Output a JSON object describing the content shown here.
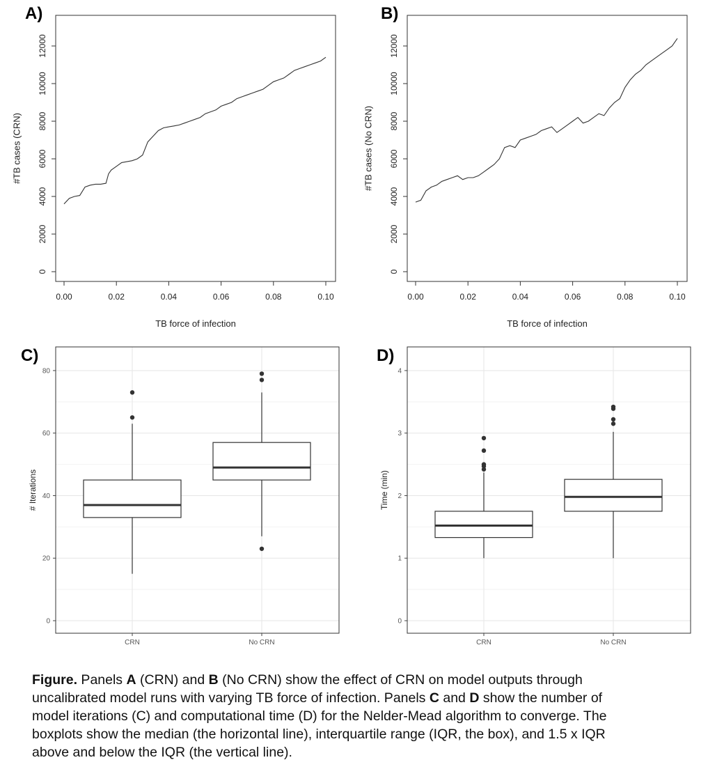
{
  "chart_data": [
    {
      "id": "A",
      "type": "line",
      "panel_label": "A)",
      "xlabel": "TB force of infection",
      "ylabel": "#TB cases (CRN)",
      "xlim": [
        0,
        0.1
      ],
      "ylim": [
        0,
        12000
      ],
      "xticks": [
        "0.00",
        "0.02",
        "0.04",
        "0.06",
        "0.08",
        "0.10"
      ],
      "yticks": [
        "0",
        "2000",
        "4000",
        "6000",
        "8000",
        "10000",
        "12000"
      ],
      "grid": false,
      "x": [
        0.0,
        0.002,
        0.004,
        0.006,
        0.008,
        0.01,
        0.012,
        0.014,
        0.016,
        0.017,
        0.018,
        0.02,
        0.022,
        0.024,
        0.026,
        0.028,
        0.03,
        0.032,
        0.034,
        0.036,
        0.038,
        0.04,
        0.042,
        0.044,
        0.046,
        0.048,
        0.05,
        0.052,
        0.054,
        0.056,
        0.058,
        0.06,
        0.062,
        0.064,
        0.066,
        0.068,
        0.07,
        0.072,
        0.074,
        0.076,
        0.078,
        0.08,
        0.082,
        0.084,
        0.086,
        0.088,
        0.09,
        0.092,
        0.094,
        0.096,
        0.098,
        0.1
      ],
      "y": [
        3600,
        3900,
        4000,
        4050,
        4500,
        4600,
        4650,
        4650,
        4700,
        5200,
        5400,
        5600,
        5800,
        5850,
        5900,
        6000,
        6200,
        6900,
        7200,
        7500,
        7650,
        7700,
        7750,
        7800,
        7900,
        8000,
        8100,
        8200,
        8400,
        8500,
        8600,
        8800,
        8900,
        9000,
        9200,
        9300,
        9400,
        9500,
        9600,
        9700,
        9900,
        10100,
        10200,
        10300,
        10500,
        10700,
        10800,
        10900,
        11000,
        11100,
        11200,
        11400
      ]
    },
    {
      "id": "B",
      "type": "line",
      "panel_label": "B)",
      "xlabel": "TB force of infection",
      "ylabel": "#TB cases (No CRN)",
      "xlim": [
        0,
        0.1
      ],
      "ylim": [
        0,
        12000
      ],
      "xticks": [
        "0.00",
        "0.02",
        "0.04",
        "0.06",
        "0.08",
        "0.10"
      ],
      "yticks": [
        "0",
        "2000",
        "4000",
        "6000",
        "8000",
        "10000",
        "12000"
      ],
      "grid": false,
      "x": [
        0.0,
        0.002,
        0.004,
        0.006,
        0.008,
        0.01,
        0.012,
        0.014,
        0.016,
        0.018,
        0.02,
        0.022,
        0.024,
        0.026,
        0.028,
        0.03,
        0.032,
        0.034,
        0.036,
        0.038,
        0.04,
        0.042,
        0.044,
        0.046,
        0.048,
        0.05,
        0.052,
        0.054,
        0.056,
        0.058,
        0.06,
        0.062,
        0.064,
        0.066,
        0.068,
        0.07,
        0.072,
        0.074,
        0.076,
        0.078,
        0.08,
        0.082,
        0.084,
        0.086,
        0.088,
        0.09,
        0.092,
        0.094,
        0.096,
        0.098,
        0.1
      ],
      "y": [
        3700,
        3800,
        4300,
        4500,
        4600,
        4800,
        4900,
        5000,
        5100,
        4900,
        5000,
        5000,
        5100,
        5300,
        5500,
        5700,
        6000,
        6600,
        6700,
        6600,
        7000,
        7100,
        7200,
        7300,
        7500,
        7600,
        7700,
        7400,
        7600,
        7800,
        8000,
        8200,
        7900,
        8000,
        8200,
        8400,
        8300,
        8700,
        9000,
        9200,
        9800,
        10200,
        10500,
        10700,
        11000,
        11200,
        11400,
        11600,
        11800,
        12000,
        12400
      ]
    },
    {
      "id": "C",
      "type": "boxplot",
      "panel_label": "C)",
      "xlabel": "",
      "ylabel": "# Iterations",
      "ylim": [
        0,
        84
      ],
      "yticks": [
        "0",
        "20",
        "40",
        "60",
        "80"
      ],
      "grid": true,
      "categories": [
        "CRN",
        "No CRN"
      ],
      "boxes": [
        {
          "category": "CRN",
          "whisker_low": 15,
          "q1": 33,
          "median": 37,
          "q3": 45,
          "whisker_high": 63,
          "outliers": [
            65,
            73
          ]
        },
        {
          "category": "No CRN",
          "whisker_low": 27,
          "q1": 45,
          "median": 49,
          "q3": 57,
          "whisker_high": 73,
          "outliers": [
            23,
            77,
            79
          ]
        }
      ]
    },
    {
      "id": "D",
      "type": "boxplot",
      "panel_label": "D)",
      "xlabel": "",
      "ylabel": "Time (min)",
      "ylim": [
        0,
        4.2
      ],
      "yticks": [
        "0",
        "1",
        "2",
        "3",
        "4"
      ],
      "grid": true,
      "categories": [
        "CRN",
        "No CRN"
      ],
      "boxes": [
        {
          "category": "CRN",
          "whisker_low": 1.0,
          "q1": 1.33,
          "median": 1.52,
          "q3": 1.75,
          "whisker_high": 2.37,
          "outliers": [
            2.42,
            2.47,
            2.5,
            2.72,
            2.92
          ]
        },
        {
          "category": "No CRN",
          "whisker_low": 1.0,
          "q1": 1.75,
          "median": 1.98,
          "q3": 2.26,
          "whisker_high": 3.02,
          "outliers": [
            3.15,
            3.22,
            3.39,
            3.42
          ]
        }
      ]
    }
  ],
  "caption": {
    "heading": "Figure.",
    "line1": [
      {
        "t": " Panels "
      },
      {
        "b": "A"
      },
      {
        "t": " (CRN) and "
      },
      {
        "b": "B"
      },
      {
        "t": " (No CRN) show the effect of CRN on model outputs  through"
      }
    ],
    "line2": "uncalibrated model runs with varying TB force of infection.  Panels ",
    "line2_b1": "C",
    "line2_mid": " and ",
    "line2_b2": "D",
    "line2_end": " show the number of",
    "line3": "model iterations (C) and computational time (D) for the Nelder-Mead algorithm to converge. The",
    "line4": "boxplots show the median (the horizontal line), interquartile range (IQR, the box), and 1.5 x IQR",
    "line5": "above and below the IQR (the vertical line)."
  }
}
